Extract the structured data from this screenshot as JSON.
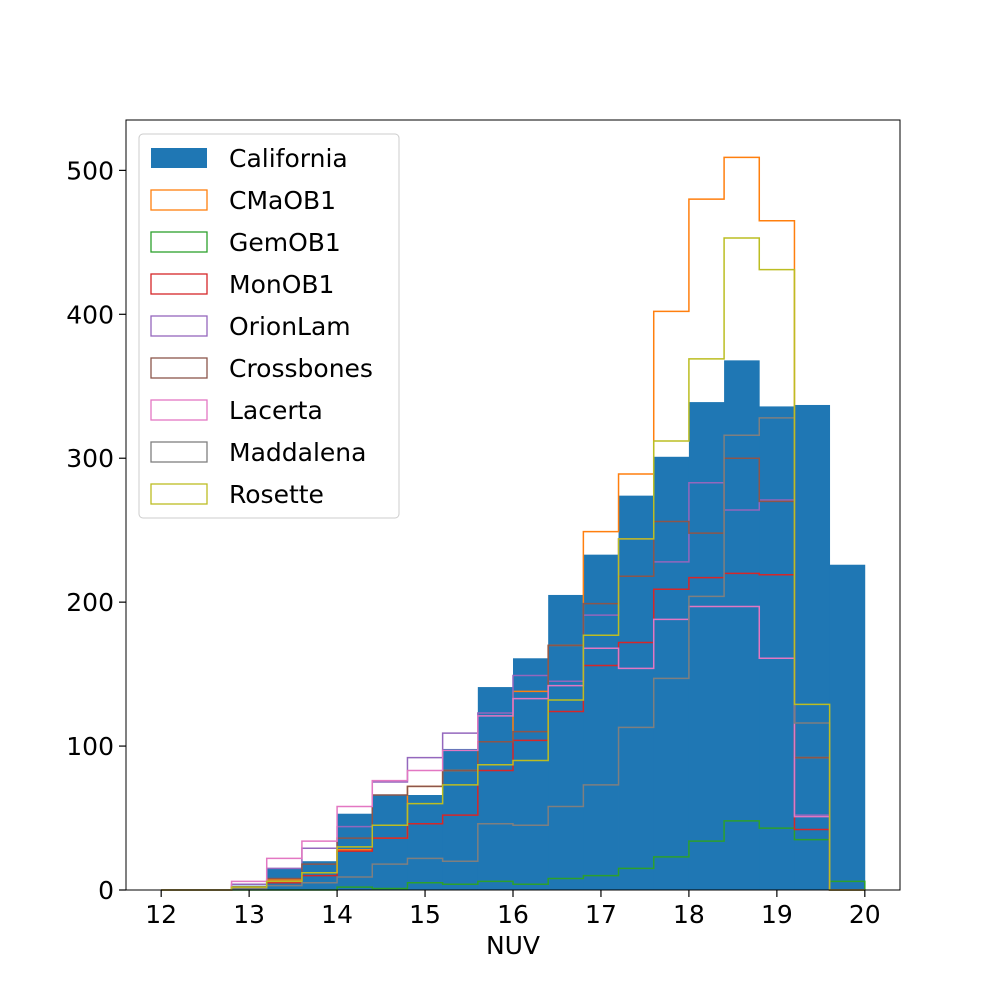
{
  "chart_data": {
    "type": "histogram",
    "xlabel": "NUV",
    "ylabel": "",
    "xlim": [
      11.6,
      20.4
    ],
    "ylim": [
      0,
      535
    ],
    "grid": false,
    "legend_position": "top-left",
    "bin_edges": [
      12.0,
      12.4,
      12.8,
      13.2,
      13.6,
      14.0,
      14.4,
      14.8,
      15.2,
      15.6,
      16.0,
      16.4,
      16.8,
      17.2,
      17.6,
      18.0,
      18.4,
      18.8,
      19.2,
      19.6,
      20.0
    ],
    "x_ticks": [
      "12",
      "13",
      "14",
      "15",
      "16",
      "17",
      "18",
      "19",
      "20"
    ],
    "y_ticks": [
      "0",
      "100",
      "200",
      "300",
      "400",
      "500"
    ],
    "series": [
      {
        "name": "California",
        "style": "filled",
        "color": "#1f77b4",
        "values": [
          0,
          0,
          3,
          15,
          20,
          53,
          66,
          66,
          98,
          141,
          161,
          205,
          233,
          274,
          301,
          339,
          368,
          336,
          337,
          226
        ]
      },
      {
        "name": "CMaOB1",
        "style": "step",
        "color": "#ff7f0e",
        "values": [
          0,
          0,
          2,
          7,
          12,
          28,
          36,
          72,
          83,
          103,
          138,
          170,
          249,
          289,
          402,
          480,
          509,
          465,
          92,
          0
        ]
      },
      {
        "name": "GemOB1",
        "style": "step",
        "color": "#2ca02c",
        "values": [
          0,
          0,
          0,
          0,
          0,
          2,
          1,
          5,
          4,
          6,
          4,
          8,
          10,
          15,
          23,
          34,
          48,
          43,
          35,
          6
        ]
      },
      {
        "name": "MonOB1",
        "style": "step",
        "color": "#d62728",
        "values": [
          0,
          0,
          2,
          5,
          10,
          27,
          36,
          46,
          52,
          83,
          104,
          124,
          156,
          172,
          209,
          217,
          220,
          219,
          42,
          0
        ]
      },
      {
        "name": "OrionLam",
        "style": "step",
        "color": "#9467bd",
        "values": [
          0,
          0,
          4,
          15,
          29,
          44,
          75,
          92,
          109,
          123,
          149,
          145,
          191,
          244,
          228,
          283,
          264,
          271,
          52,
          0
        ]
      },
      {
        "name": "Crossbones",
        "style": "step",
        "color": "#8c564b",
        "values": [
          0,
          0,
          2,
          8,
          18,
          36,
          66,
          72,
          83,
          103,
          110,
          170,
          199,
          218,
          256,
          248,
          300,
          270,
          92,
          0
        ]
      },
      {
        "name": "Lacerta",
        "style": "step",
        "color": "#e377c2",
        "values": [
          0,
          0,
          6,
          22,
          34,
          58,
          76,
          83,
          97,
          121,
          133,
          142,
          168,
          154,
          188,
          197,
          197,
          161,
          51,
          0
        ]
      },
      {
        "name": "Maddalena",
        "style": "step",
        "color": "#7f7f7f",
        "values": [
          0,
          0,
          1,
          3,
          5,
          9,
          18,
          22,
          20,
          46,
          45,
          58,
          73,
          113,
          147,
          204,
          316,
          328,
          116,
          0
        ]
      },
      {
        "name": "Rosette",
        "style": "step",
        "color": "#bcbd22",
        "values": [
          0,
          0,
          2,
          6,
          12,
          30,
          45,
          60,
          73,
          87,
          90,
          132,
          177,
          244,
          312,
          369,
          453,
          431,
          129,
          0
        ]
      }
    ]
  }
}
